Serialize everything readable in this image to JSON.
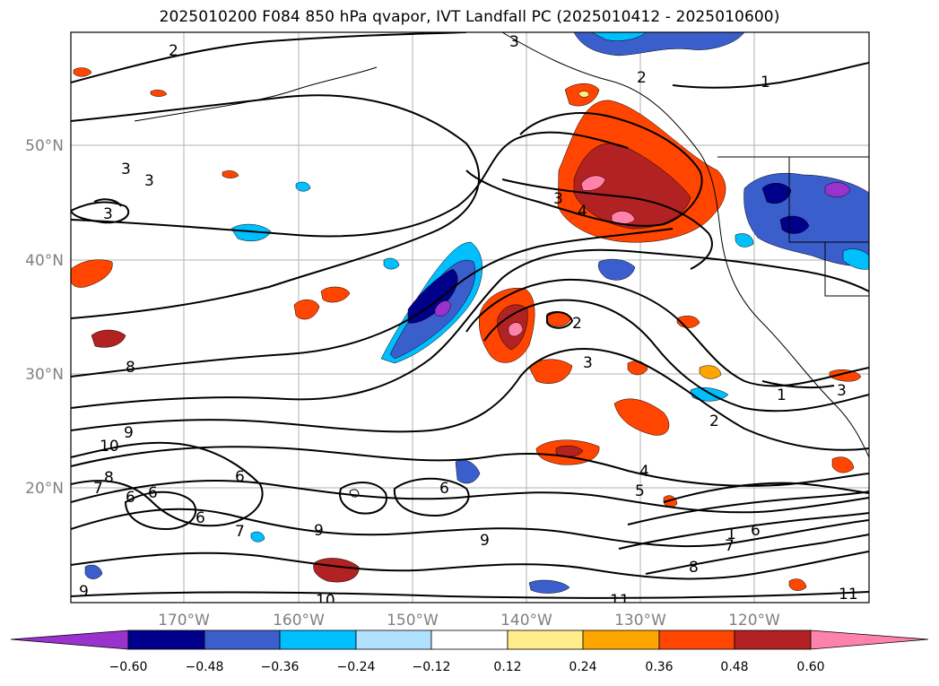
{
  "title": "2025010200 F084 850 hPa qvapor, IVT Landfall PC (2025010412 - 2025010600)",
  "map": {
    "lat_labels": [
      "50°N",
      "40°N",
      "30°N",
      "20°N"
    ],
    "lon_labels": [
      "170°W",
      "160°W",
      "150°W",
      "140°W",
      "130°W",
      "120°W"
    ],
    "contour_labels": [
      "2",
      "3",
      "2",
      "1",
      "3",
      "3",
      "3",
      "4",
      "2",
      "3",
      "8",
      "10",
      "9",
      "8",
      "6",
      "6",
      "6",
      "7",
      "7",
      "9",
      "9",
      "6",
      "6",
      "9",
      "10",
      "11",
      "4",
      "5",
      "6",
      "7",
      "8",
      "11",
      "2",
      "1",
      "1",
      "3",
      "3"
    ]
  },
  "colorbar": {
    "tick_labels": [
      "−0.60",
      "−0.48",
      "−0.36",
      "−0.24",
      "−0.12",
      "0.12",
      "0.24",
      "0.36",
      "0.48",
      "0.60"
    ],
    "colors": [
      "#9a32cd",
      "#00008b",
      "#3a5fcd",
      "#00bfff",
      "#b0e2ff",
      "#ffffff",
      "#ffec8b",
      "#ffa500",
      "#ff4500",
      "#b22222",
      "#ff82ab"
    ]
  }
}
